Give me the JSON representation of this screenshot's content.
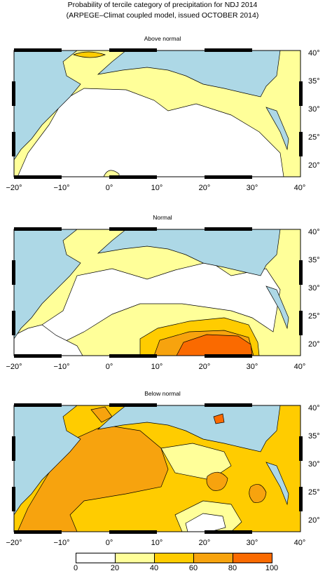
{
  "header": {
    "title_line1": "Probability of tercile category of precipitation for NDJ 2014",
    "title_line2": "(ARPEGE–Climat coupled model, issued OCTOBER 2014)"
  },
  "panels": [
    {
      "id": "above",
      "title": "Above normal"
    },
    {
      "id": "normal",
      "title": "Normal"
    },
    {
      "id": "below",
      "title": "Below normal"
    }
  ],
  "axes": {
    "x_ticks": [
      "−20°",
      "−10°",
      "0°",
      "10°",
      "20°",
      "30°",
      "40°"
    ],
    "y_ticks": [
      "40°",
      "35°",
      "30°",
      "25°",
      "20°"
    ]
  },
  "legend": {
    "labels": [
      "0",
      "20",
      "40",
      "60",
      "80",
      "100"
    ],
    "colors": [
      "#ffffff",
      "#ffff99",
      "#ffcc00",
      "#f7a30e",
      "#fa6a00"
    ]
  },
  "colors": {
    "sea": "#add8e6",
    "frame": "#000000"
  }
}
